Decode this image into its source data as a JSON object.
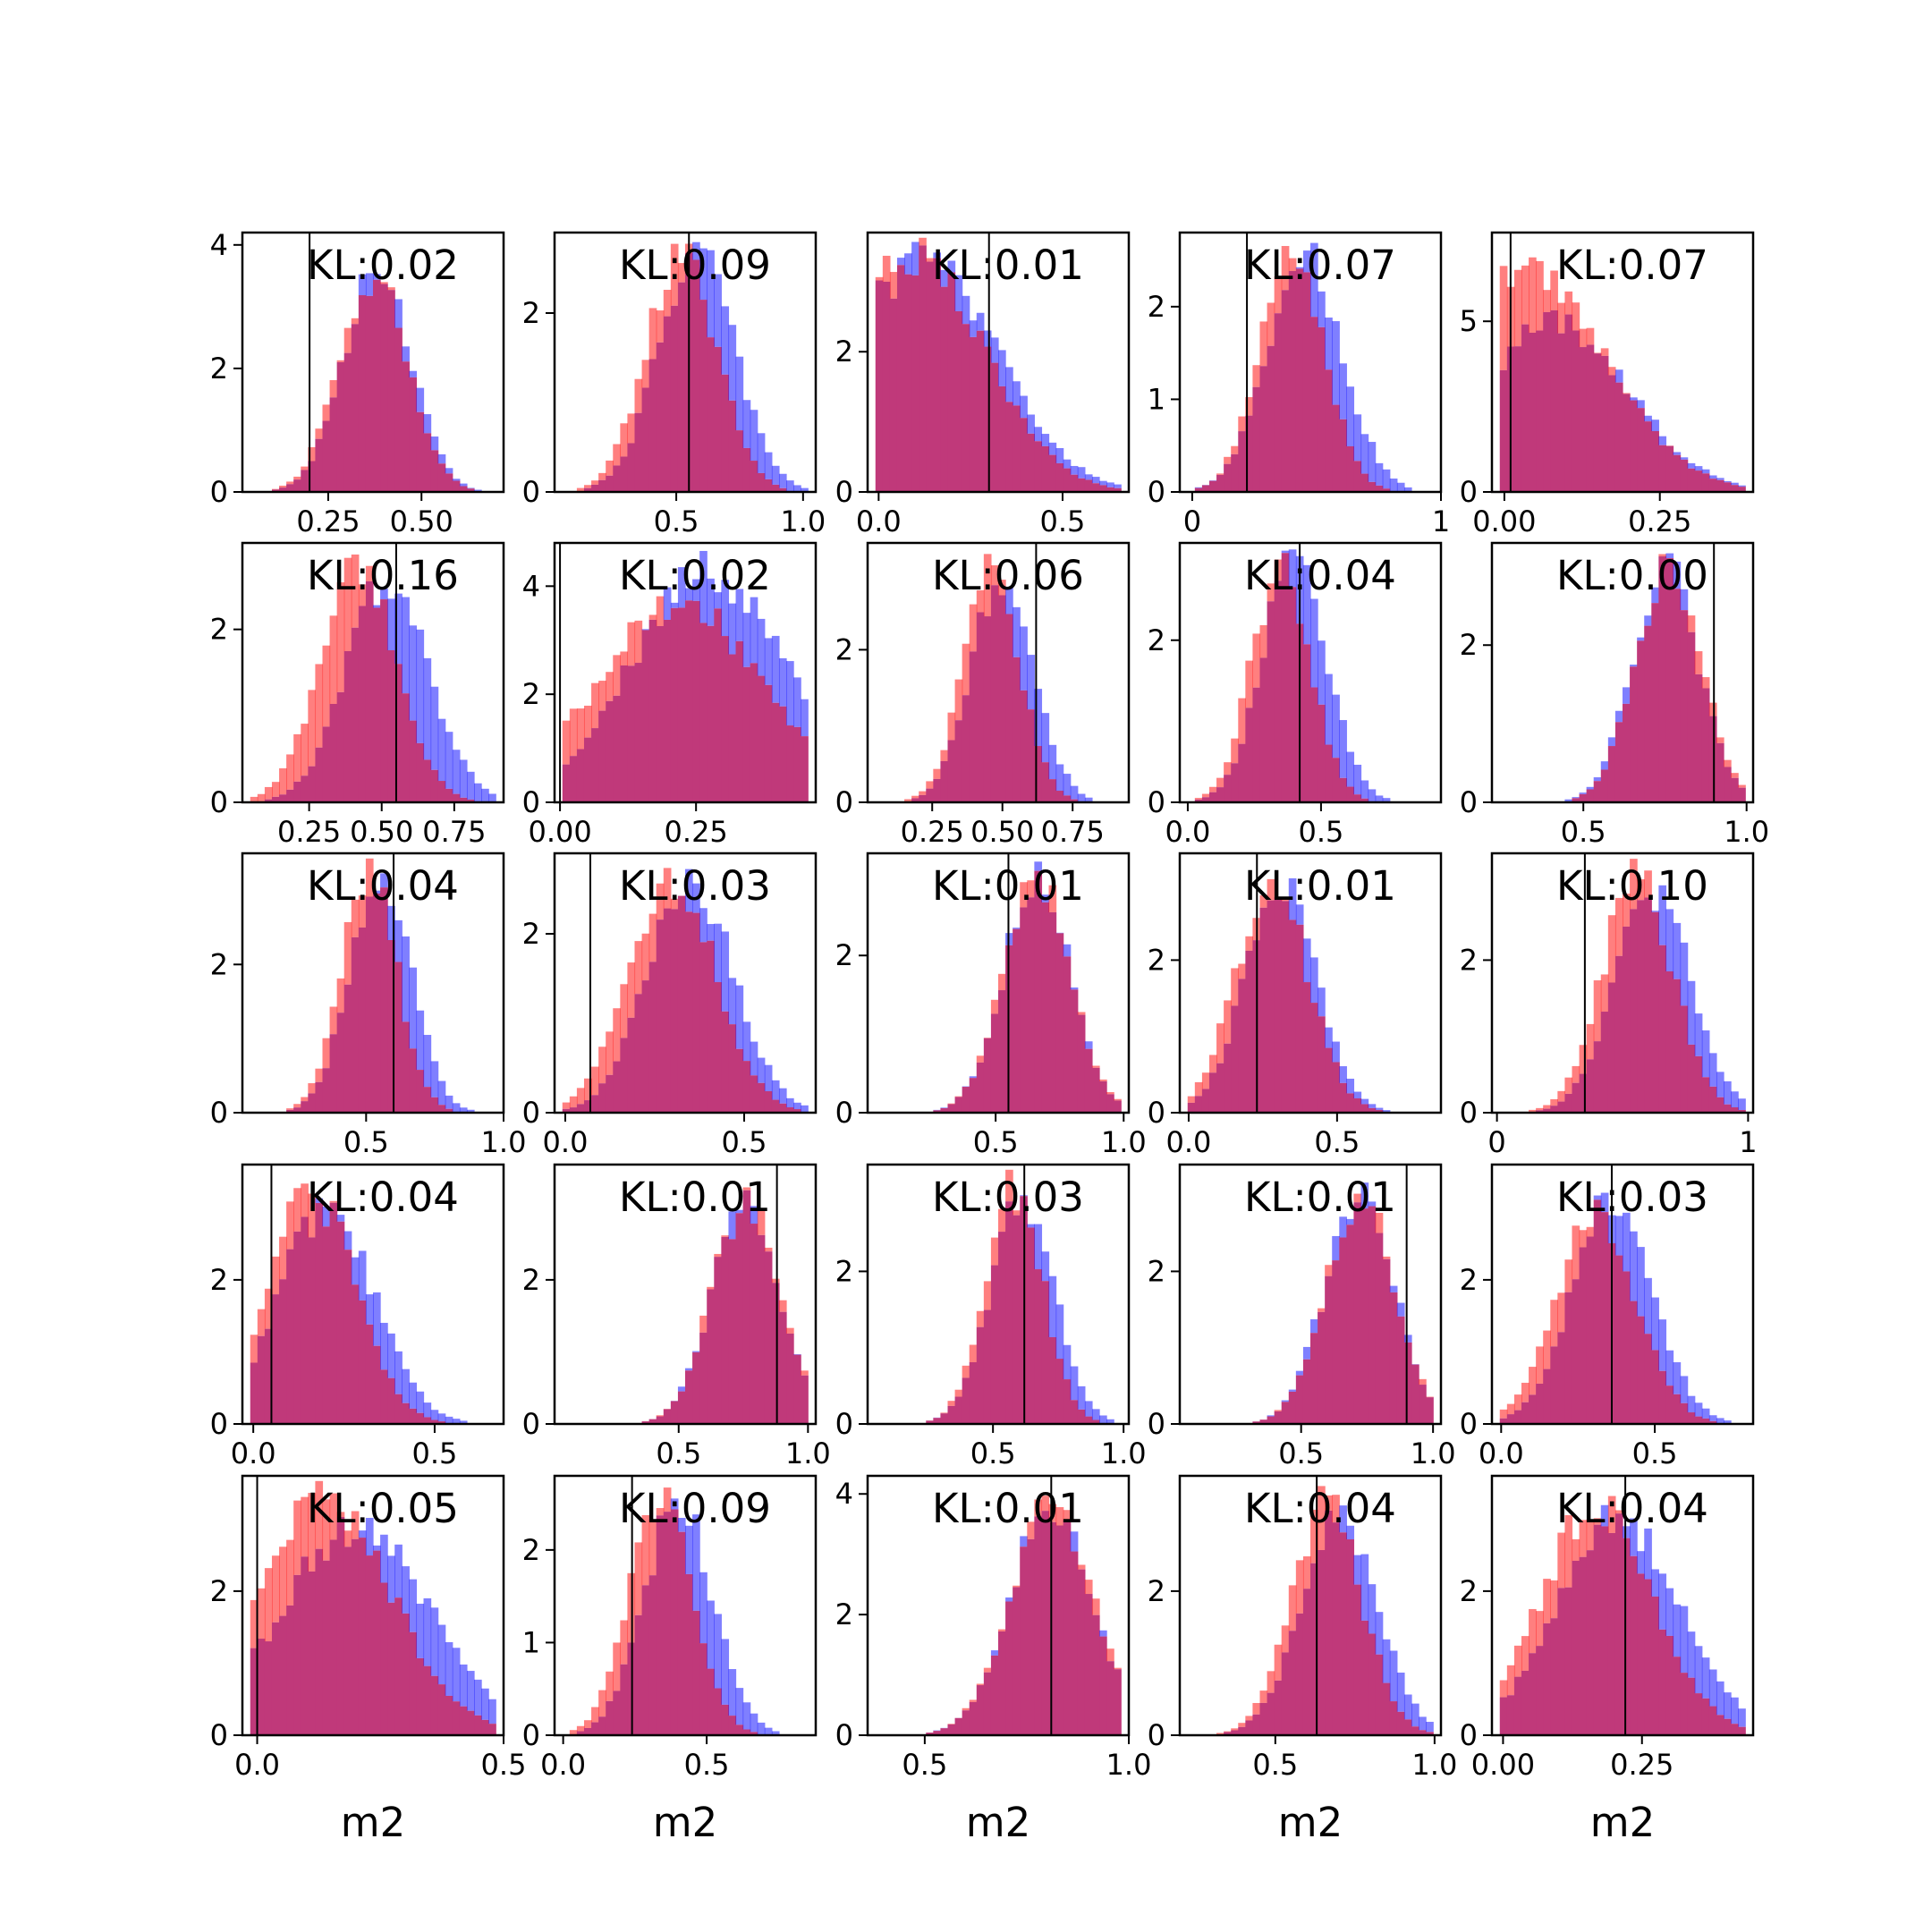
{
  "colors": {
    "blue": "#0000ff",
    "red": "#ff0000",
    "overlap": "#c0397a",
    "frame": "#000000"
  },
  "legend": "none",
  "grid": false,
  "chart_data": [
    {
      "type": "bar",
      "annotation": "KL:0.02",
      "xlabel": "",
      "xticks": [
        "0.25",
        "0.50"
      ],
      "xtick_values": [
        0.25,
        0.5
      ],
      "yticks": [
        "0",
        "2",
        "4"
      ],
      "ytick_values": [
        0,
        2,
        4
      ],
      "xlim": [
        0.02,
        0.72
      ],
      "ylim": [
        0,
        4.2
      ],
      "vline": 0.2,
      "blue": {
        "center": 0.38,
        "spread": 0.09,
        "peak": 3.6,
        "tail": 0.6
      },
      "red": {
        "center": 0.37,
        "spread": 0.09,
        "peak": 3.5,
        "tail": 0.6
      }
    },
    {
      "type": "bar",
      "annotation": "KL:0.09",
      "xlabel": "",
      "xticks": [
        "0.5",
        "1.0"
      ],
      "xtick_values": [
        0.5,
        1.0
      ],
      "yticks": [
        "0",
        "2"
      ],
      "ytick_values": [
        0,
        2
      ],
      "xlim": [
        0.02,
        1.05
      ],
      "ylim": [
        0,
        2.9
      ],
      "vline": 0.55,
      "blue": {
        "center": 0.58,
        "spread": 0.15,
        "peak": 2.65,
        "tail": 1.0
      },
      "red": {
        "center": 0.52,
        "spread": 0.14,
        "peak": 2.6,
        "tail": 1.0
      }
    },
    {
      "type": "bar",
      "annotation": "KL:0.01",
      "xlabel": "",
      "xticks": [
        "0.0",
        "0.5"
      ],
      "xtick_values": [
        0.0,
        0.5
      ],
      "yticks": [
        "0",
        "2"
      ],
      "ytick_values": [
        0,
        2
      ],
      "xlim": [
        -0.03,
        0.68
      ],
      "ylim": [
        0,
        3.7
      ],
      "vline": 0.3,
      "blue": {
        "center": 0.12,
        "spread": 0.2,
        "peak": 3.3,
        "tail": 1.0
      },
      "red": {
        "center": 0.1,
        "spread": 0.19,
        "peak": 3.4,
        "tail": 1.0
      }
    },
    {
      "type": "bar",
      "annotation": "KL:0.07",
      "xlabel": "",
      "xticks": [
        "0",
        "1"
      ],
      "xtick_values": [
        0,
        1
      ],
      "yticks": [
        "0",
        "1",
        "2"
      ],
      "ytick_values": [
        0,
        1,
        2
      ],
      "xlim": [
        -0.05,
        1.0
      ],
      "ylim": [
        0,
        2.8
      ],
      "vline": 0.22,
      "blue": {
        "center": 0.45,
        "spread": 0.15,
        "peak": 2.55,
        "tail": 1.0
      },
      "red": {
        "center": 0.4,
        "spread": 0.13,
        "peak": 2.55,
        "tail": 1.0
      }
    },
    {
      "type": "bar",
      "annotation": "KL:0.07",
      "xlabel": "",
      "xticks": [
        "0.00",
        "0.25"
      ],
      "xtick_values": [
        0.0,
        0.25
      ],
      "yticks": [
        "0",
        "5"
      ],
      "ytick_values": [
        0,
        5
      ],
      "xlim": [
        -0.02,
        0.4
      ],
      "ylim": [
        0,
        7.6
      ],
      "vline": 0.01,
      "blue": {
        "center": 0.08,
        "spread": 0.12,
        "peak": 4.9,
        "tail": 0.9
      },
      "red": {
        "center": 0.03,
        "spread": 0.13,
        "peak": 6.6,
        "tail": 0.9
      }
    },
    {
      "type": "bar",
      "annotation": "KL:0.16",
      "xlabel": "",
      "xticks": [
        "0.25",
        "0.50",
        "0.75"
      ],
      "xtick_values": [
        0.25,
        0.5,
        0.75
      ],
      "yticks": [
        "0",
        "2"
      ],
      "ytick_values": [
        0,
        2
      ],
      "xlim": [
        0.02,
        0.92
      ],
      "ylim": [
        0,
        3.0
      ],
      "vline": 0.55,
      "blue": {
        "center": 0.52,
        "spread": 0.14,
        "peak": 2.6,
        "tail": 1.0
      },
      "red": {
        "center": 0.42,
        "spread": 0.13,
        "peak": 2.8,
        "tail": 1.0
      }
    },
    {
      "type": "bar",
      "annotation": "KL:0.02",
      "xlabel": "",
      "xticks": [
        "0.00",
        "0.25"
      ],
      "xtick_values": [
        0.0,
        0.25
      ],
      "yticks": [
        "0",
        "2",
        "4"
      ],
      "ytick_values": [
        0,
        2,
        4
      ],
      "xlim": [
        -0.01,
        0.47
      ],
      "ylim": [
        0,
        4.8
      ],
      "vline": 0.0,
      "blue": {
        "center": 0.27,
        "spread": 0.14,
        "peak": 4.3,
        "tail": 0.5
      },
      "red": {
        "center": 0.22,
        "spread": 0.15,
        "peak": 3.7,
        "tail": 0.5
      }
    },
    {
      "type": "bar",
      "annotation": "KL:0.06",
      "xlabel": "",
      "xticks": [
        "0.25",
        "0.50",
        "0.75"
      ],
      "xtick_values": [
        0.25,
        0.5,
        0.75
      ],
      "yticks": [
        "0",
        "2"
      ],
      "ytick_values": [
        0,
        2
      ],
      "xlim": [
        0.02,
        0.95
      ],
      "ylim": [
        0,
        3.4
      ],
      "vline": 0.62,
      "blue": {
        "center": 0.5,
        "spread": 0.11,
        "peak": 3.0,
        "tail": 1.0
      },
      "red": {
        "center": 0.46,
        "spread": 0.1,
        "peak": 3.1,
        "tail": 1.0
      }
    },
    {
      "type": "bar",
      "annotation": "KL:0.04",
      "xlabel": "",
      "xticks": [
        "0.0",
        "0.5"
      ],
      "xtick_values": [
        0.0,
        0.5
      ],
      "yticks": [
        "0",
        "2"
      ],
      "ytick_values": [
        0,
        2
      ],
      "xlim": [
        -0.03,
        0.95
      ],
      "ylim": [
        0,
        3.2
      ],
      "vline": 0.42,
      "blue": {
        "center": 0.4,
        "spread": 0.12,
        "peak": 3.0,
        "tail": 1.0
      },
      "red": {
        "center": 0.35,
        "spread": 0.11,
        "peak": 2.9,
        "tail": 1.0
      }
    },
    {
      "type": "bar",
      "annotation": "KL:0.00",
      "xlabel": "",
      "xticks": [
        "0.5",
        "1.0"
      ],
      "xtick_values": [
        0.5,
        1.0
      ],
      "yticks": [
        "0",
        "2"
      ],
      "ytick_values": [
        0,
        2
      ],
      "xlim": [
        0.22,
        1.02
      ],
      "ylim": [
        0,
        3.3
      ],
      "vline": 0.9,
      "blue": {
        "center": 0.75,
        "spread": 0.1,
        "peak": 3.0,
        "tail": 0.5
      },
      "red": {
        "center": 0.76,
        "spread": 0.1,
        "peak": 3.0,
        "tail": 0.5
      }
    },
    {
      "type": "bar",
      "annotation": "KL:0.04",
      "xlabel": "",
      "xticks": [
        "0.5",
        "1.0"
      ],
      "xtick_values": [
        0.5,
        1.0
      ],
      "yticks": [
        "0",
        "2"
      ],
      "ytick_values": [
        0,
        2
      ],
      "xlim": [
        0.05,
        1.0
      ],
      "ylim": [
        0,
        3.5
      ],
      "vline": 0.6,
      "blue": {
        "center": 0.55,
        "spread": 0.11,
        "peak": 3.25,
        "tail": 1.0
      },
      "red": {
        "center": 0.51,
        "spread": 0.1,
        "peak": 3.3,
        "tail": 1.0
      }
    },
    {
      "type": "bar",
      "annotation": "KL:0.03",
      "xlabel": "",
      "xticks": [
        "0.0",
        "0.5"
      ],
      "xtick_values": [
        0.0,
        0.5
      ],
      "yticks": [
        "0",
        "2"
      ],
      "ytick_values": [
        0,
        2
      ],
      "xlim": [
        -0.03,
        0.7
      ],
      "ylim": [
        0,
        2.9
      ],
      "vline": 0.07,
      "blue": {
        "center": 0.35,
        "spread": 0.12,
        "peak": 2.6,
        "tail": 1.0
      },
      "red": {
        "center": 0.3,
        "spread": 0.12,
        "peak": 2.6,
        "tail": 1.0
      }
    },
    {
      "type": "bar",
      "annotation": "KL:0.01",
      "xlabel": "",
      "xticks": [
        "0.5",
        "1.0"
      ],
      "xtick_values": [
        0.5,
        1.0
      ],
      "yticks": [
        "0",
        "2"
      ],
      "ytick_values": [
        0,
        2
      ],
      "xlim": [
        0.0,
        1.02
      ],
      "ylim": [
        0,
        3.3
      ],
      "vline": 0.55,
      "blue": {
        "center": 0.66,
        "spread": 0.13,
        "peak": 2.95,
        "tail": 0.8
      },
      "red": {
        "center": 0.66,
        "spread": 0.13,
        "peak": 3.0,
        "tail": 0.8
      }
    },
    {
      "type": "bar",
      "annotation": "KL:0.01",
      "xlabel": "",
      "xticks": [
        "0.0",
        "0.5"
      ],
      "xtick_values": [
        0.0,
        0.5
      ],
      "yticks": [
        "0",
        "2"
      ],
      "ytick_values": [
        0,
        2
      ],
      "xlim": [
        -0.03,
        0.85
      ],
      "ylim": [
        0,
        3.4
      ],
      "vline": 0.23,
      "blue": {
        "center": 0.31,
        "spread": 0.12,
        "peak": 3.0,
        "tail": 1.0
      },
      "red": {
        "center": 0.28,
        "spread": 0.12,
        "peak": 3.05,
        "tail": 1.0
      }
    },
    {
      "type": "bar",
      "annotation": "KL:0.10",
      "xlabel": "",
      "xticks": [
        "0",
        "1"
      ],
      "xtick_values": [
        0,
        1
      ],
      "yticks": [
        "0",
        "2"
      ],
      "ytick_values": [
        0,
        2
      ],
      "xlim": [
        -0.02,
        1.02
      ],
      "ylim": [
        0,
        3.4
      ],
      "vline": 0.35,
      "blue": {
        "center": 0.62,
        "spread": 0.15,
        "peak": 2.9,
        "tail": 1.0
      },
      "red": {
        "center": 0.56,
        "spread": 0.14,
        "peak": 3.1,
        "tail": 1.0
      }
    },
    {
      "type": "bar",
      "annotation": "KL:0.04",
      "xlabel": "",
      "xticks": [
        "0.0",
        "0.5"
      ],
      "xtick_values": [
        0.0,
        0.5
      ],
      "yticks": [
        "0",
        "2"
      ],
      "ytick_values": [
        0,
        2
      ],
      "xlim": [
        -0.03,
        0.69
      ],
      "ylim": [
        0,
        3.6
      ],
      "vline": 0.05,
      "blue": {
        "center": 0.2,
        "spread": 0.13,
        "peak": 3.0,
        "tail": 1.0
      },
      "red": {
        "center": 0.16,
        "spread": 0.12,
        "peak": 3.2,
        "tail": 1.0
      }
    },
    {
      "type": "bar",
      "annotation": "KL:0.01",
      "xlabel": "",
      "xticks": [
        "0.5",
        "1.0"
      ],
      "xtick_values": [
        0.5,
        1.0
      ],
      "yticks": [
        "0",
        "2"
      ],
      "ytick_values": [
        0,
        2
      ],
      "xlim": [
        0.02,
        1.03
      ],
      "ylim": [
        0,
        3.6
      ],
      "vline": 0.88,
      "blue": {
        "center": 0.76,
        "spread": 0.13,
        "peak": 3.05,
        "tail": 0.7
      },
      "red": {
        "center": 0.76,
        "spread": 0.13,
        "peak": 3.1,
        "tail": 0.7
      }
    },
    {
      "type": "bar",
      "annotation": "KL:0.03",
      "xlabel": "",
      "xticks": [
        "0.5",
        "1.0"
      ],
      "xtick_values": [
        0.5,
        1.0
      ],
      "yticks": [
        "0",
        "2"
      ],
      "ytick_values": [
        0,
        2
      ],
      "xlim": [
        0.02,
        1.02
      ],
      "ylim": [
        0,
        3.4
      ],
      "vline": 0.62,
      "blue": {
        "center": 0.61,
        "spread": 0.12,
        "peak": 3.0,
        "tail": 1.0
      },
      "red": {
        "center": 0.58,
        "spread": 0.11,
        "peak": 3.1,
        "tail": 1.0
      }
    },
    {
      "type": "bar",
      "annotation": "KL:0.01",
      "xlabel": "",
      "xticks": [
        "0.5",
        "1.0"
      ],
      "xtick_values": [
        0.5,
        1.0
      ],
      "yticks": [
        "0",
        "2"
      ],
      "ytick_values": [
        0,
        2
      ],
      "xlim": [
        0.04,
        1.03
      ],
      "ylim": [
        0,
        3.4
      ],
      "vline": 0.9,
      "blue": {
        "center": 0.72,
        "spread": 0.13,
        "peak": 3.0,
        "tail": 0.8
      },
      "red": {
        "center": 0.72,
        "spread": 0.13,
        "peak": 3.0,
        "tail": 0.8
      }
    },
    {
      "type": "bar",
      "annotation": "KL:0.03",
      "xlabel": "",
      "xticks": [
        "0.0",
        "0.5"
      ],
      "xtick_values": [
        0.0,
        0.5
      ],
      "yticks": [
        "0",
        "2"
      ],
      "ytick_values": [
        0,
        2
      ],
      "xlim": [
        -0.03,
        0.82
      ],
      "ylim": [
        0,
        3.6
      ],
      "vline": 0.36,
      "blue": {
        "center": 0.36,
        "spread": 0.13,
        "peak": 3.1,
        "tail": 1.0
      },
      "red": {
        "center": 0.31,
        "spread": 0.13,
        "peak": 2.9,
        "tail": 1.0
      }
    },
    {
      "type": "bar",
      "annotation": "KL:0.05",
      "xlabel": "m2",
      "xticks": [
        "0.0",
        "0.5"
      ],
      "xtick_values": [
        0.0,
        0.5
      ],
      "yticks": [
        "0",
        "2"
      ],
      "ytick_values": [
        0,
        2
      ],
      "xlim": [
        -0.03,
        0.5
      ],
      "ylim": [
        0,
        3.6
      ],
      "vline": 0.0,
      "blue": {
        "center": 0.2,
        "spread": 0.15,
        "peak": 2.9,
        "tail": 0.7
      },
      "red": {
        "center": 0.13,
        "spread": 0.14,
        "peak": 3.3,
        "tail": 0.7
      }
    },
    {
      "type": "bar",
      "annotation": "KL:0.09",
      "xlabel": "m2",
      "xticks": [
        "0.0",
        "0.5"
      ],
      "xtick_values": [
        0.0,
        0.5
      ],
      "yticks": [
        "0",
        "1",
        "2"
      ],
      "ytick_values": [
        0,
        1,
        2
      ],
      "xlim": [
        -0.03,
        0.88
      ],
      "ylim": [
        0,
        2.8
      ],
      "vline": 0.24,
      "blue": {
        "center": 0.4,
        "spread": 0.12,
        "peak": 2.5,
        "tail": 1.0
      },
      "red": {
        "center": 0.34,
        "spread": 0.11,
        "peak": 2.55,
        "tail": 1.0
      }
    },
    {
      "type": "bar",
      "annotation": "KL:0.01",
      "xlabel": "m2",
      "xticks": [
        "0.5",
        "1.0"
      ],
      "xtick_values": [
        0.5,
        1.0
      ],
      "yticks": [
        "0",
        "2",
        "4"
      ],
      "ytick_values": [
        0,
        2,
        4
      ],
      "xlim": [
        0.36,
        1.0
      ],
      "ylim": [
        0,
        4.3
      ],
      "vline": 0.81,
      "blue": {
        "center": 0.81,
        "spread": 0.1,
        "peak": 3.8,
        "tail": 0.5
      },
      "red": {
        "center": 0.81,
        "spread": 0.1,
        "peak": 3.8,
        "tail": 0.5
      }
    },
    {
      "type": "bar",
      "annotation": "KL:0.04",
      "xlabel": "m2",
      "xticks": [
        "0.5",
        "1.0"
      ],
      "xtick_values": [
        0.5,
        1.0
      ],
      "yticks": [
        "0",
        "2"
      ],
      "ytick_values": [
        0,
        2
      ],
      "xlim": [
        0.2,
        1.02
      ],
      "ylim": [
        0,
        3.6
      ],
      "vline": 0.63,
      "blue": {
        "center": 0.7,
        "spread": 0.12,
        "peak": 3.0,
        "tail": 1.0
      },
      "red": {
        "center": 0.66,
        "spread": 0.11,
        "peak": 3.2,
        "tail": 1.0
      }
    },
    {
      "type": "bar",
      "annotation": "KL:0.04",
      "xlabel": "m2",
      "xticks": [
        "0.00",
        "0.25"
      ],
      "xtick_values": [
        0.0,
        0.25
      ],
      "yticks": [
        "0",
        "2"
      ],
      "ytick_values": [
        0,
        2
      ],
      "xlim": [
        -0.02,
        0.45
      ],
      "ylim": [
        0,
        3.6
      ],
      "vline": 0.22,
      "blue": {
        "center": 0.21,
        "spread": 0.11,
        "peak": 3.0,
        "tail": 0.9
      },
      "red": {
        "center": 0.17,
        "spread": 0.1,
        "peak": 3.2,
        "tail": 0.9
      }
    }
  ]
}
